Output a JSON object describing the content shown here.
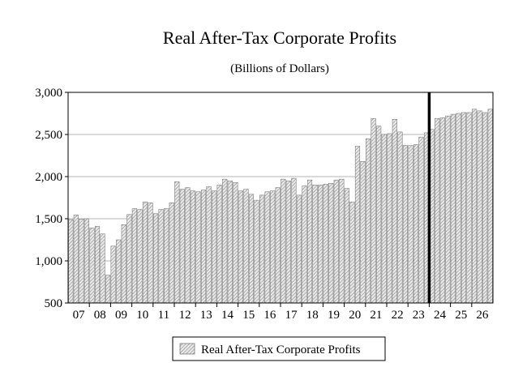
{
  "chart_data": {
    "type": "bar",
    "title": "Real After-Tax Corporate Profits",
    "subtitle": "(Billions of Dollars)",
    "xlabel": "",
    "ylabel": "",
    "ylim": [
      500,
      3000
    ],
    "yticks": [
      500,
      1000,
      1500,
      2000,
      2500,
      3000
    ],
    "ytick_labels": [
      "500",
      "1,000",
      "1,500",
      "2,000",
      "2,500",
      "3,000"
    ],
    "year_labels": [
      "07",
      "08",
      "09",
      "10",
      "11",
      "12",
      "13",
      "14",
      "15",
      "16",
      "17",
      "18",
      "19",
      "20",
      "21",
      "22",
      "23",
      "24",
      "25",
      "26"
    ],
    "categories": [
      "07Q1",
      "07Q2",
      "07Q3",
      "07Q4",
      "08Q1",
      "08Q2",
      "08Q3",
      "08Q4",
      "09Q1",
      "09Q2",
      "09Q3",
      "09Q4",
      "10Q1",
      "10Q2",
      "10Q3",
      "10Q4",
      "11Q1",
      "11Q2",
      "11Q3",
      "11Q4",
      "12Q1",
      "12Q2",
      "12Q3",
      "12Q4",
      "13Q1",
      "13Q2",
      "13Q3",
      "13Q4",
      "14Q1",
      "14Q2",
      "14Q3",
      "14Q4",
      "15Q1",
      "15Q2",
      "15Q3",
      "15Q4",
      "16Q1",
      "16Q2",
      "16Q3",
      "16Q4",
      "17Q1",
      "17Q2",
      "17Q3",
      "17Q4",
      "18Q1",
      "18Q2",
      "18Q3",
      "18Q4",
      "19Q1",
      "19Q2",
      "19Q3",
      "19Q4",
      "20Q1",
      "20Q2",
      "20Q3",
      "20Q4",
      "21Q1",
      "21Q2",
      "21Q3",
      "21Q4",
      "22Q1",
      "22Q2",
      "22Q3",
      "22Q4",
      "23Q1",
      "23Q2",
      "23Q3",
      "23Q4",
      "24Q1",
      "24Q2",
      "24Q3",
      "24Q4",
      "25Q1",
      "25Q2",
      "25Q3",
      "25Q4",
      "26Q1",
      "26Q2",
      "26Q3",
      "26Q4"
    ],
    "series": [
      {
        "name": "Real After-Tax Corporate Profits",
        "values": [
          1490,
          1545,
          1495,
          1500,
          1390,
          1410,
          1320,
          830,
          1175,
          1250,
          1430,
          1550,
          1620,
          1610,
          1700,
          1690,
          1560,
          1610,
          1620,
          1690,
          1940,
          1850,
          1870,
          1830,
          1820,
          1840,
          1880,
          1830,
          1900,
          1970,
          1950,
          1930,
          1830,
          1850,
          1790,
          1720,
          1780,
          1820,
          1830,
          1870,
          1970,
          1950,
          1980,
          1780,
          1890,
          1960,
          1900,
          1900,
          1910,
          1920,
          1960,
          1970,
          1860,
          1700,
          2360,
          2180,
          2450,
          2690,
          2600,
          2500,
          2510,
          2680,
          2530,
          2370,
          2370,
          2380,
          2470,
          2520,
          2560,
          2690,
          2700,
          2720,
          2740,
          2750,
          2760,
          2760,
          2800,
          2780,
          2760,
          2800
        ]
      }
    ],
    "forecast_marker_after": "23Q4",
    "legend": [
      "Real After-Tax Corporate Profits"
    ],
    "legend_position": "bottom-center",
    "grid": true
  },
  "colors": {
    "background": "#ffffff",
    "bar_fill": "#e8e8e8",
    "bar_hatch": "#7a7a7a",
    "grid": "#b4b4b4",
    "axis": "#000000"
  }
}
